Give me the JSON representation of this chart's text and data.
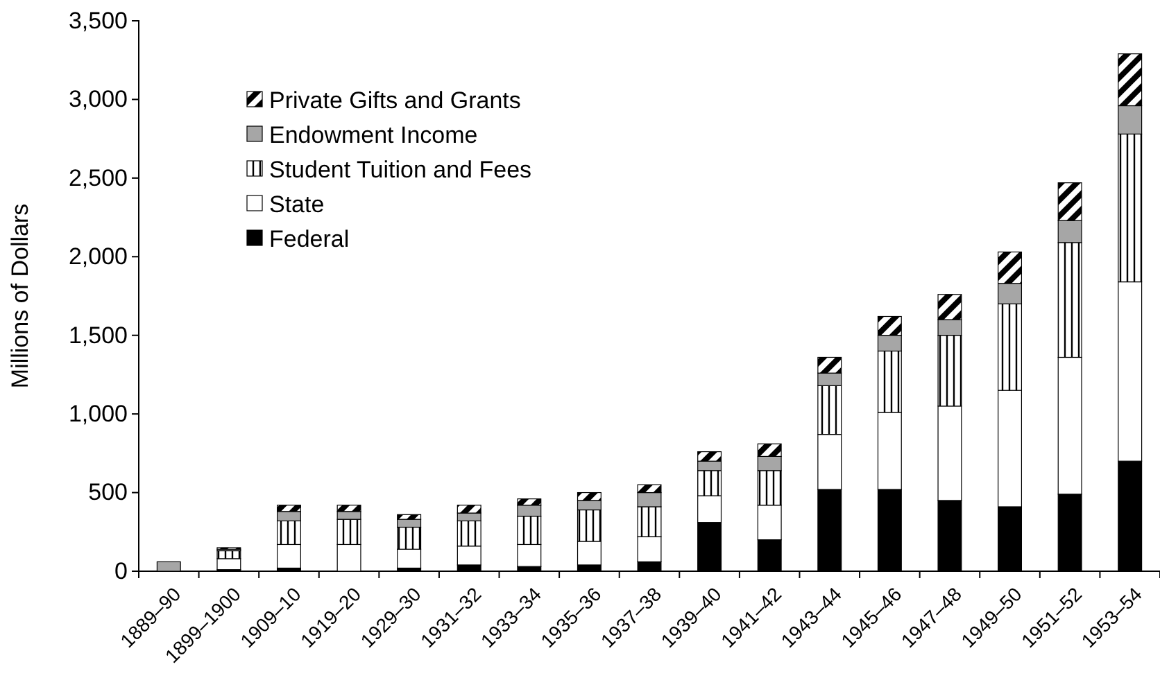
{
  "chart_data": {
    "type": "bar",
    "stacked": true,
    "ylabel": "Millions of Dollars",
    "categories": [
      "1889–90",
      "1899–1900",
      "1909–10",
      "1919–20",
      "1929–30",
      "1931–32",
      "1933–34",
      "1935–36",
      "1937–38",
      "1939–40",
      "1941–42",
      "1943–44",
      "1945–46",
      "1947–48",
      "1949–50",
      "1951–52",
      "1953–54"
    ],
    "series": [
      {
        "name": "Federal",
        "color": "#000000",
        "values": [
          0,
          10,
          20,
          0,
          20,
          40,
          30,
          40,
          60,
          310,
          200,
          520,
          520,
          450,
          410,
          490,
          700
        ]
      },
      {
        "name": "State",
        "color": "#ffffff",
        "values": [
          0,
          70,
          150,
          170,
          120,
          120,
          140,
          150,
          160,
          170,
          220,
          350,
          490,
          600,
          740,
          870,
          1140
        ]
      },
      {
        "name": "Student Tuition and Fees",
        "color": "#000000",
        "values": [
          0,
          50,
          150,
          160,
          140,
          160,
          180,
          200,
          190,
          160,
          220,
          310,
          390,
          450,
          550,
          730,
          940
        ]
      },
      {
        "name": "Endowment Income",
        "color": "#a6a6a6",
        "values": [
          60,
          10,
          60,
          50,
          50,
          50,
          70,
          60,
          90,
          60,
          90,
          80,
          100,
          100,
          130,
          140,
          180
        ]
      },
      {
        "name": "Private Gifts and Grants",
        "color": "#000000",
        "values": [
          0,
          10,
          40,
          40,
          30,
          50,
          40,
          50,
          50,
          60,
          80,
          100,
          120,
          160,
          200,
          240,
          330
        ]
      }
    ],
    "ylim": [
      0,
      3500
    ],
    "yticks": [
      {
        "value": 0,
        "label": "0"
      },
      {
        "value": 500,
        "label": "500"
      },
      {
        "value": 1000,
        "label": "1,000"
      },
      {
        "value": 1500,
        "label": "1,500"
      },
      {
        "value": 2000,
        "label": "2,000"
      },
      {
        "value": 2500,
        "label": "2,500"
      },
      {
        "value": 3000,
        "label": "3,000"
      },
      {
        "value": 3500,
        "label": "3,500"
      }
    ],
    "legend": "top left"
  }
}
